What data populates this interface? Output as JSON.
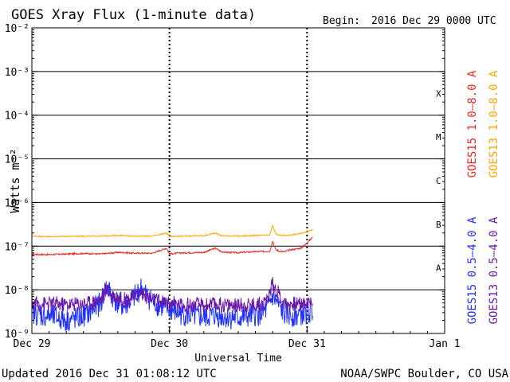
{
  "title": "GOES Xray Flux (1-minute data)",
  "begin_label": "Begin:",
  "begin_value": "2016 Dec 29 0000 UTC",
  "updated": "Updated 2016 Dec 31 01:08:12 UTC",
  "credit": "NOAA/SWPC Boulder, CO USA",
  "chart_data": {
    "type": "line",
    "title": "GOES Xray Flux (1-minute data)",
    "xlabel": "Universal Time",
    "ylabel": "Watts m⁻²",
    "y_scale": "log",
    "ylim": [
      1e-09,
      0.01
    ],
    "xlim": [
      0,
      72
    ],
    "x_unit": "hours since 2016 Dec 29 00:00 UTC",
    "x_ticks": [
      {
        "x": 0,
        "label": "Dec 29"
      },
      {
        "x": 24,
        "label": "Dec 30"
      },
      {
        "x": 48,
        "label": "Dec 31"
      },
      {
        "x": 72,
        "label": "Jan 1"
      }
    ],
    "y_ticks": [
      {
        "exp": -2,
        "label": "10⁻²"
      },
      {
        "exp": -3,
        "label": "10⁻³"
      },
      {
        "exp": -4,
        "label": "10⁻⁴"
      },
      {
        "exp": -5,
        "label": "10⁻⁵"
      },
      {
        "exp": -6,
        "label": "10⁻⁶"
      },
      {
        "exp": -7,
        "label": "10⁻⁷"
      },
      {
        "exp": -8,
        "label": "10⁻⁸"
      },
      {
        "exp": -9,
        "label": "10⁻⁹"
      }
    ],
    "flare_classes": [
      {
        "label": "X",
        "log": -3.5
      },
      {
        "label": "M",
        "log": -4.5
      },
      {
        "label": "C",
        "log": -5.5
      },
      {
        "label": "B",
        "log": -6.5
      },
      {
        "label": "A",
        "log": -7.5
      }
    ],
    "grid": "horizontal lines at each decade from 1e-8 to 1e-3; dashed verticals at day boundaries",
    "legend_placement": "right side, rotated vertical text",
    "series": [
      {
        "name": "GOES15 1.0-8.0 A",
        "color": "#e8281e",
        "x": [
          0,
          3,
          6,
          9,
          12,
          15,
          18,
          21,
          23.5,
          24,
          26,
          30,
          32,
          33,
          34,
          36,
          39,
          41.5,
          42,
          42.5,
          43,
          44,
          45,
          47,
          48,
          49
        ],
        "values": [
          6.5e-08,
          6.4e-08,
          6.6e-08,
          6.8e-08,
          6.6e-08,
          7.2e-08,
          6.9e-08,
          6.9e-08,
          9e-08,
          6.6e-08,
          7e-08,
          7.2e-08,
          9e-08,
          7.5e-08,
          7.2e-08,
          7.1e-08,
          7.5e-08,
          7.6e-08,
          1.3e-07,
          8.5e-08,
          7.8e-08,
          7.4e-08,
          8.2e-08,
          9e-08,
          1.2e-07,
          1.6e-07
        ]
      },
      {
        "name": "GOES13 1.0-8.0 A",
        "color": "#ffa500",
        "x": [
          0,
          3,
          6,
          9,
          12,
          15,
          18,
          21,
          23.5,
          24,
          26,
          30,
          32,
          33,
          34,
          36,
          39,
          41.5,
          42,
          42.5,
          43,
          44,
          45,
          47,
          48,
          49
        ],
        "values": [
          1.7e-07,
          1.65e-07,
          1.68e-07,
          1.7e-07,
          1.7e-07,
          1.75e-07,
          1.7e-07,
          1.7e-07,
          2e-07,
          1.68e-07,
          1.7e-07,
          1.73e-07,
          2e-07,
          1.75e-07,
          1.72e-07,
          1.7e-07,
          1.75e-07,
          1.8e-07,
          3e-07,
          1.95e-07,
          1.8e-07,
          1.75e-07,
          1.8e-07,
          1.95e-07,
          2.2e-07,
          2.4e-07
        ]
      },
      {
        "name": "GOES15 0.5-4.0 A",
        "color": "#2030ff",
        "x": [
          0,
          2,
          4,
          6,
          8,
          10,
          12,
          13,
          14,
          15,
          16,
          18,
          19,
          20,
          21,
          22,
          24,
          26,
          28,
          30,
          32,
          34,
          36,
          38,
          40,
          41,
          42,
          44,
          46,
          48,
          49
        ],
        "values": [
          3e-09,
          2.6e-09,
          2.4e-09,
          2e-09,
          2.2e-09,
          3e-09,
          5e-09,
          1.2e-08,
          7e-09,
          5e-09,
          4e-09,
          7e-09,
          1.1e-08,
          7.5e-09,
          5.5e-09,
          4.5e-09,
          3.5e-09,
          2.8e-09,
          2.5e-09,
          2.3e-09,
          2.6e-09,
          2.4e-09,
          2.2e-09,
          2.5e-09,
          2.8e-09,
          3.5e-09,
          7e-09,
          2.8e-09,
          2.6e-09,
          3e-09,
          3.2e-09
        ]
      },
      {
        "name": "GOES13 0.5-4.0 A",
        "color": "#6a1aa8",
        "x": [
          0,
          2,
          4,
          6,
          8,
          10,
          12,
          13,
          14,
          15,
          16,
          18,
          19,
          20,
          21,
          22,
          24,
          26,
          28,
          30,
          32,
          34,
          36,
          38,
          40,
          41,
          42,
          44,
          46,
          48,
          49
        ],
        "values": [
          5e-09,
          4.8e-09,
          4.8e-09,
          4.6e-09,
          4.8e-09,
          5e-09,
          6e-09,
          1e-08,
          7.5e-09,
          6.5e-09,
          6e-09,
          7e-09,
          9e-09,
          7e-09,
          6e-09,
          5.5e-09,
          5e-09,
          4.6e-09,
          4.5e-09,
          4.4e-09,
          4.6e-09,
          4.5e-09,
          4.4e-09,
          4.6e-09,
          4.8e-09,
          5.5e-09,
          1.4e-08,
          5e-09,
          4.8e-09,
          5e-09,
          5.2e-09
        ]
      }
    ]
  }
}
